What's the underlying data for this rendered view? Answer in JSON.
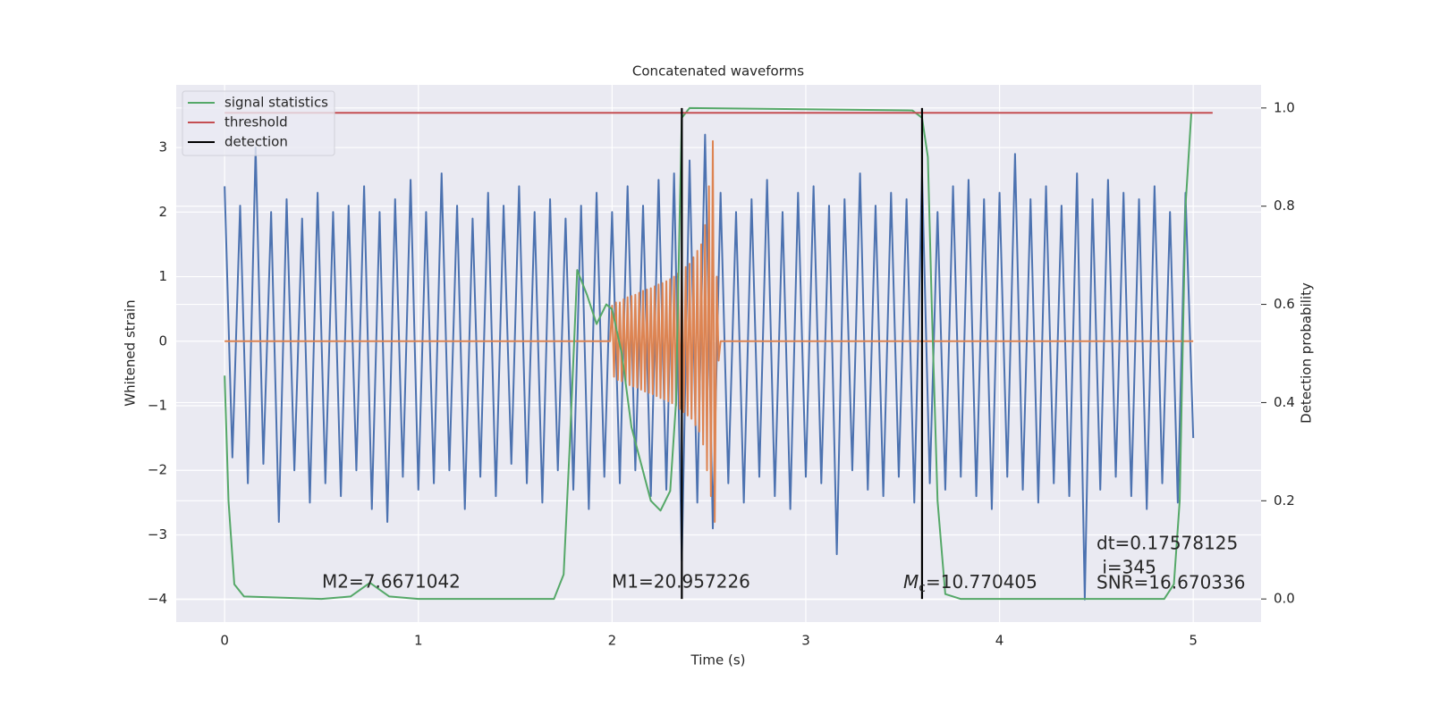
{
  "chart_data": {
    "type": "line",
    "title": "Concatenated waveforms",
    "xlabel": "Time (s)",
    "ylabel": "Whitened strain",
    "y2label": "Detection probability",
    "xlim": [
      -0.25,
      5.35
    ],
    "ylim": [
      -4.35,
      3.97
    ],
    "y2lim": [
      -0.047,
      1.047
    ],
    "xticks": [
      0,
      1,
      2,
      3,
      4,
      5
    ],
    "yticks": [
      {
        "value": -4,
        "label": "−4"
      },
      {
        "value": -3,
        "label": "−3"
      },
      {
        "value": -2,
        "label": "−2"
      },
      {
        "value": -1,
        "label": "−1"
      },
      0,
      1,
      2,
      3
    ],
    "y2ticks": [
      {
        "value": 0,
        "label": "0.0"
      },
      {
        "value": 0.2,
        "label": "0.2"
      },
      {
        "value": 0.4,
        "label": "0.4"
      },
      {
        "value": 0.6,
        "label": "0.6"
      },
      {
        "value": 0.8,
        "label": "0.8"
      },
      {
        "value": 1.0,
        "label": "1.0"
      }
    ],
    "grid": true,
    "legend": "upper left",
    "series": [
      {
        "color": "#4c72b0",
        "x": [
          0,
          0.04,
          0.08,
          0.12,
          0.16,
          0.2,
          0.24,
          0.28,
          0.32,
          0.36,
          0.4,
          0.44,
          0.48,
          0.52,
          0.56,
          0.6,
          0.64,
          0.68,
          0.72,
          0.76,
          0.8,
          0.84,
          0.88,
          0.92,
          0.96,
          1,
          1.04,
          1.08,
          1.12,
          1.16,
          1.2,
          1.24,
          1.28,
          1.32,
          1.36,
          1.4,
          1.44,
          1.48,
          1.52,
          1.56,
          1.6,
          1.64,
          1.68,
          1.72,
          1.76,
          1.8,
          1.84,
          1.88,
          1.92,
          1.96,
          2,
          2.04,
          2.08,
          2.12,
          2.16,
          2.2,
          2.24,
          2.28,
          2.32,
          2.36,
          2.4,
          2.44,
          2.48,
          2.52,
          2.56,
          2.6,
          2.64,
          2.68,
          2.72,
          2.76,
          2.8,
          2.84,
          2.88,
          2.92,
          2.96,
          3,
          3.04,
          3.08,
          3.12,
          3.16,
          3.2,
          3.24,
          3.28,
          3.32,
          3.36,
          3.4,
          3.44,
          3.48,
          3.52,
          3.56,
          3.6,
          3.64,
          3.68,
          3.72,
          3.76,
          3.8,
          3.84,
          3.88,
          3.92,
          3.96,
          4,
          4.04,
          4.08,
          4.12,
          4.16,
          4.2,
          4.24,
          4.28,
          4.32,
          4.36,
          4.4,
          4.44,
          4.48,
          4.52,
          4.56,
          4.6,
          4.64,
          4.68,
          4.72,
          4.76,
          4.8,
          4.84,
          4.88,
          4.92,
          4.96,
          5
        ],
        "values": [
          2.4,
          -1.8,
          2.1,
          -2.2,
          3.0,
          -1.9,
          2.0,
          -2.8,
          2.2,
          -2.0,
          1.9,
          -2.5,
          2.3,
          -2.2,
          2.0,
          -2.4,
          2.1,
          -2.0,
          2.4,
          -2.6,
          2.0,
          -2.8,
          2.2,
          -2.1,
          2.5,
          -2.3,
          2.0,
          -2.2,
          2.6,
          -2.0,
          2.1,
          -2.6,
          1.9,
          -2.1,
          2.3,
          -2.4,
          2.1,
          -1.9,
          2.4,
          -2.2,
          2.0,
          -2.5,
          2.2,
          -2.0,
          1.9,
          -2.3,
          2.1,
          -2.6,
          2.3,
          -2.1,
          2.0,
          -2.2,
          2.4,
          -2.0,
          2.1,
          -2.4,
          2.5,
          -2.3,
          2.6,
          -3.4,
          2.8,
          -2.5,
          3.2,
          -2.9,
          2.3,
          -2.2,
          2.0,
          -2.5,
          2.2,
          -2.1,
          2.5,
          -2.4,
          2.0,
          -2.6,
          2.3,
          -2.1,
          2.4,
          -2.2,
          2.1,
          -3.3,
          2.2,
          -2.0,
          2.6,
          -2.3,
          2.1,
          -2.4,
          2.3,
          -2.1,
          2.2,
          -2.5,
          2.6,
          -2.2,
          2.0,
          -2.3,
          2.4,
          -2.1,
          2.5,
          -2.4,
          2.2,
          -2.6,
          2.3,
          -2.1,
          2.9,
          -2.3,
          2.2,
          -2.5,
          2.4,
          -2.2,
          2.1,
          -2.4,
          2.6,
          -4.0,
          2.2,
          -2.3,
          2.5,
          -2.1,
          2.3,
          -2.4,
          2.2,
          -2.6,
          2.4,
          -2.2,
          2.0,
          -2.5,
          2.3,
          -1.5
        ]
      },
      {
        "color": "#dd8452",
        "x": [
          0,
          1.99,
          2,
          2.01,
          2.02,
          2.03,
          2.04,
          2.05,
          2.06,
          2.07,
          2.08,
          2.09,
          2.1,
          2.11,
          2.12,
          2.13,
          2.14,
          2.15,
          2.16,
          2.17,
          2.18,
          2.19,
          2.2,
          2.21,
          2.22,
          2.23,
          2.24,
          2.25,
          2.26,
          2.27,
          2.28,
          2.29,
          2.3,
          2.31,
          2.32,
          2.33,
          2.34,
          2.35,
          2.36,
          2.37,
          2.38,
          2.39,
          2.4,
          2.41,
          2.42,
          2.43,
          2.44,
          2.45,
          2.46,
          2.47,
          2.48,
          2.49,
          2.5,
          2.51,
          2.52,
          2.53,
          2.54,
          2.55,
          2.56,
          5
        ],
        "values": [
          0,
          0,
          0.55,
          -0.55,
          0.6,
          -0.6,
          0.6,
          -0.62,
          0.65,
          -0.65,
          0.68,
          -0.68,
          0.7,
          -0.7,
          0.72,
          -0.72,
          0.75,
          -0.75,
          0.78,
          -0.78,
          0.8,
          -0.8,
          0.82,
          -0.82,
          0.85,
          -0.85,
          0.88,
          -0.88,
          0.9,
          -0.9,
          0.93,
          -0.93,
          0.96,
          -0.96,
          1.0,
          -1.0,
          1.05,
          -1.05,
          1.1,
          -1.1,
          1.15,
          -1.15,
          1.2,
          -1.2,
          1.3,
          -1.3,
          1.4,
          -1.4,
          1.5,
          -1.6,
          1.8,
          -2.0,
          2.4,
          -2.4,
          3.1,
          -2.8,
          1.0,
          -0.3,
          0,
          0
        ]
      },
      {
        "name": "signal statistics",
        "color": "#55a868",
        "axis": "y2",
        "x": [
          0,
          0.02,
          0.05,
          0.1,
          0.5,
          0.65,
          0.75,
          0.85,
          1,
          1.7,
          1.75,
          1.78,
          1.82,
          1.87,
          1.92,
          1.97,
          2,
          2.05,
          2.1,
          2.2,
          2.25,
          2.3,
          2.33,
          2.35,
          2.36,
          2.4,
          3.55,
          3.6,
          3.63,
          3.65,
          3.68,
          3.72,
          3.8,
          4.85,
          4.9,
          4.93,
          4.96,
          4.99
        ],
        "values": [
          0.455,
          0.2,
          0.03,
          0.005,
          0,
          0.005,
          0.033,
          0.005,
          0,
          0,
          0.05,
          0.3,
          0.67,
          0.62,
          0.56,
          0.6,
          0.59,
          0.5,
          0.35,
          0.2,
          0.18,
          0.22,
          0.4,
          0.8,
          0.98,
          1.0,
          0.995,
          0.98,
          0.9,
          0.6,
          0.2,
          0.01,
          0,
          0,
          0.03,
          0.2,
          0.8,
          0.99
        ]
      },
      {
        "name": "threshold",
        "color": "#c44e52",
        "axis": "y2",
        "x": [
          0,
          5.1
        ],
        "values": [
          0.99,
          0.99
        ]
      }
    ],
    "detection": {
      "name": "detection",
      "color": "#000000",
      "x": [
        2.36,
        3.6
      ],
      "y2span": [
        0,
        1
      ]
    },
    "annotations": {
      "m2": "M2=7.6671042",
      "m1": "M1=20.957226",
      "mc_symbol": "M",
      "mc_sub": "c",
      "mc_value": "=10.770405",
      "stats": [
        "dt=0.17578125",
        " i=345",
        "SNR=16.670336"
      ]
    }
  }
}
